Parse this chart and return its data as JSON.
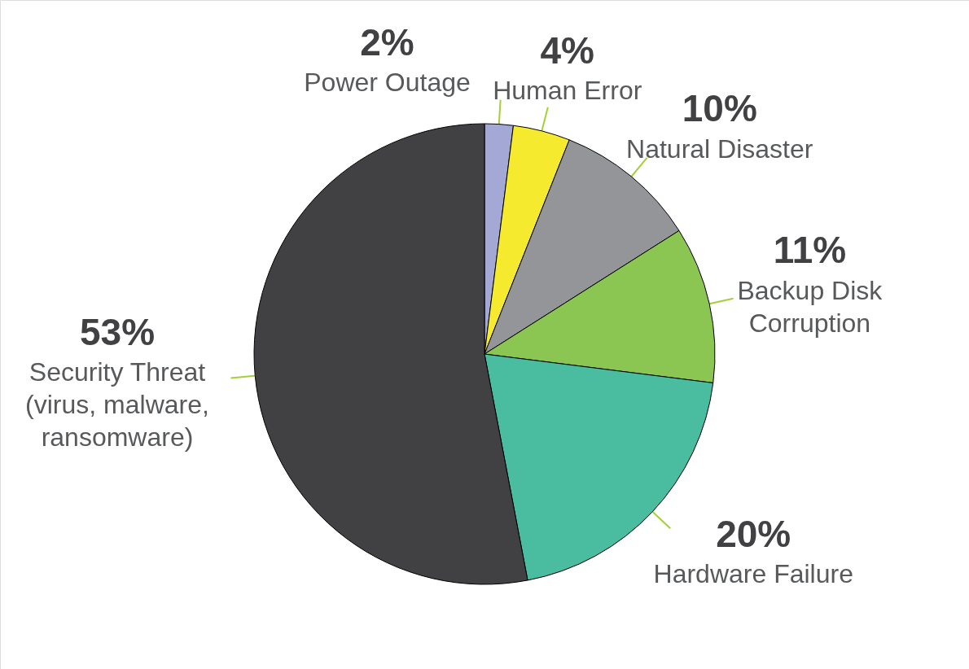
{
  "chart_data": {
    "type": "pie",
    "categories": [
      "Power Outage",
      "Human Error",
      "Natural Disaster",
      "Backup Disk Corruption",
      "Hardware Failure",
      "Security Threat (virus, malware, ransomware)"
    ],
    "values": [
      2,
      4,
      10,
      11,
      20,
      53
    ],
    "colors": [
      "#a3a8d4",
      "#f5ea2e",
      "#939598",
      "#8bc653",
      "#4abda0",
      "#414042"
    ],
    "value_labels": [
      "2%",
      "4%",
      "10%",
      "11%",
      "20%",
      "53%"
    ]
  }
}
